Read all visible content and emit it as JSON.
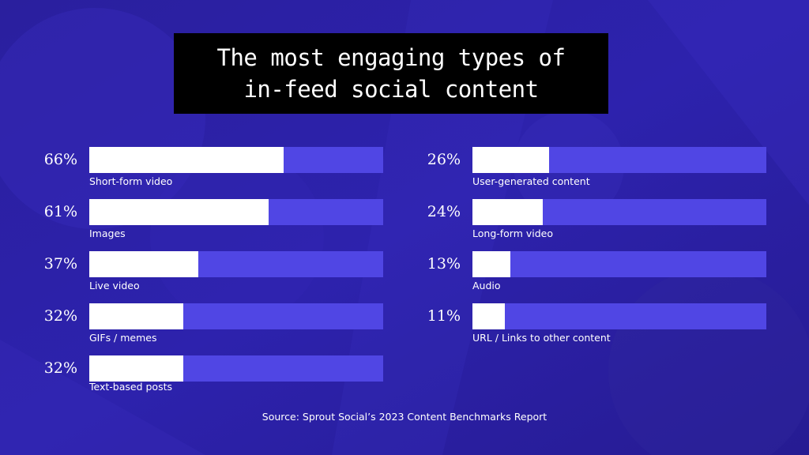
{
  "colors": {
    "background": "#2b1fa3",
    "bar_track": "#5046e4",
    "bar_fill": "#ffffff",
    "title_box": "#000000"
  },
  "chart_data": {
    "type": "bar",
    "orientation": "horizontal",
    "title_lines": [
      "The most engaging types of",
      "in-feed social content"
    ],
    "source": "Source: Sprout Social’s 2023 Content Benchmarks Report",
    "xlim": [
      0,
      100
    ],
    "value_unit": "%",
    "categories": [
      "Short-form video",
      "Images",
      "Live video",
      "GIFs / memes",
      "Text-based posts",
      "User-generated content",
      "Long-form video",
      "Audio",
      "URL / Links to other content"
    ],
    "values": [
      66,
      61,
      37,
      32,
      32,
      26,
      24,
      13,
      11
    ],
    "value_labels": [
      "66%",
      "61%",
      "37%",
      "32%",
      "32%",
      "26%",
      "24%",
      "13%",
      "11%"
    ],
    "legend": "none",
    "grid": false
  }
}
